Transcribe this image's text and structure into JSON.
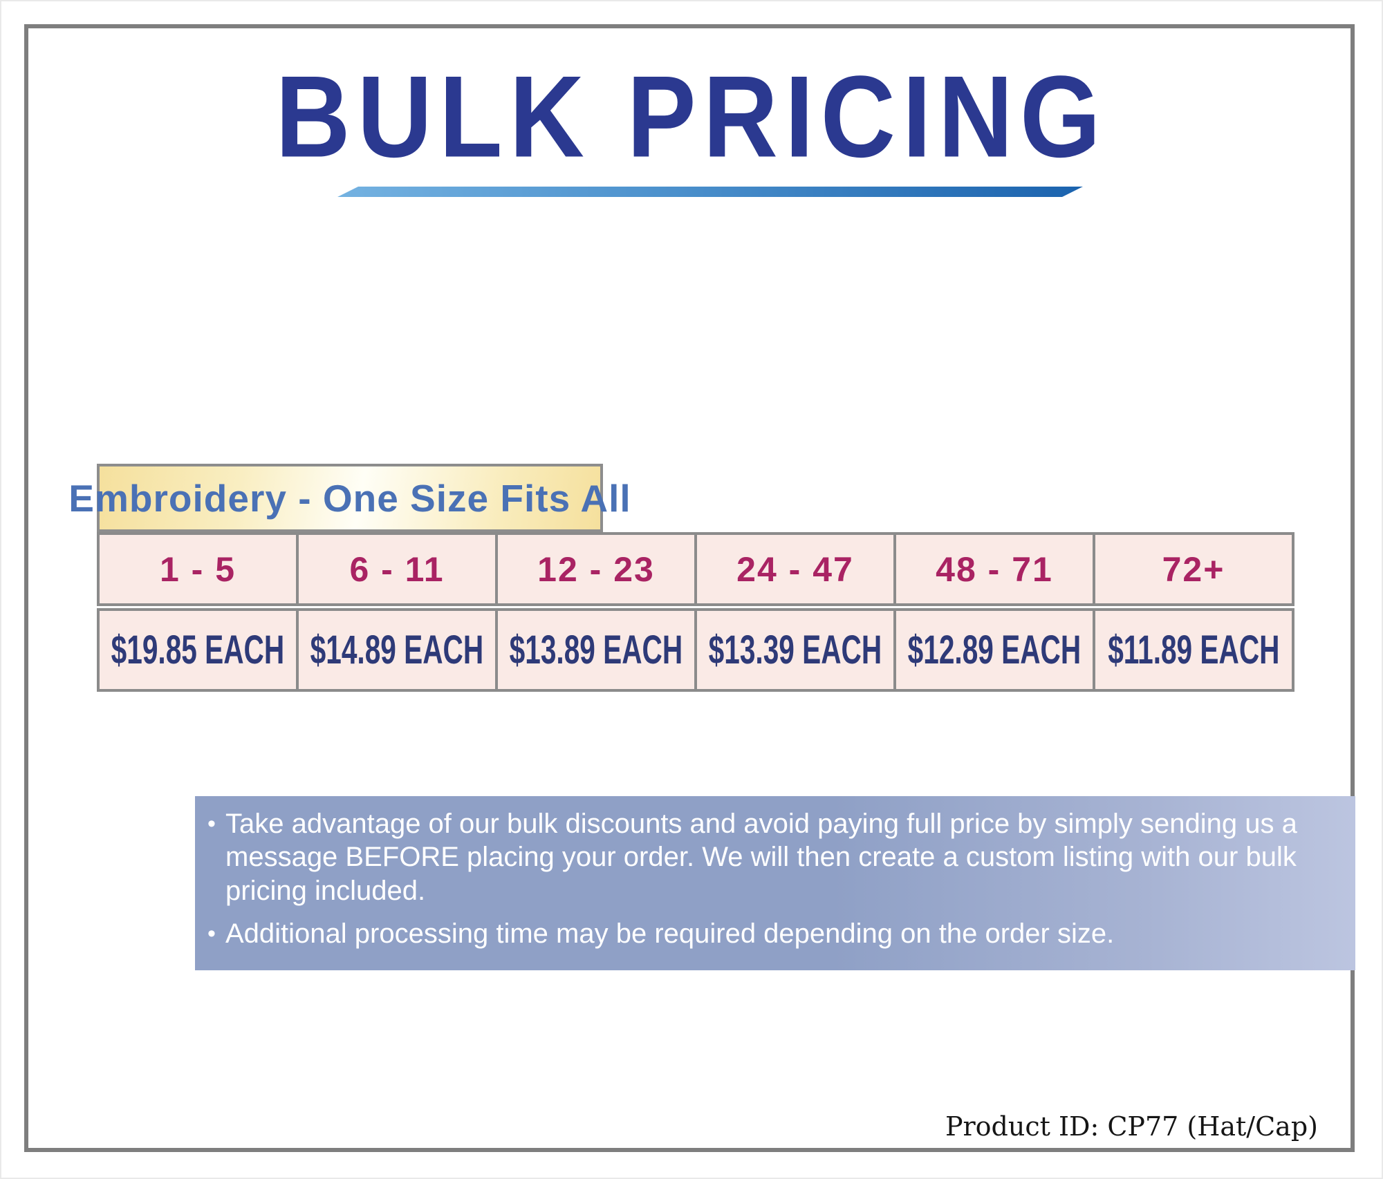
{
  "title": "BULK PRICING",
  "pricing_table": {
    "header": "Embroidery - One Size Fits All",
    "tiers": [
      {
        "qty": "1 - 5",
        "price": "$19.85 EACH"
      },
      {
        "qty": "6 - 11",
        "price": "$14.89 EACH"
      },
      {
        "qty": "12 - 23",
        "price": "$13.89 EACH"
      },
      {
        "qty": "24 - 47",
        "price": "$13.39 EACH"
      },
      {
        "qty": "48 - 71",
        "price": "$12.89 EACH"
      },
      {
        "qty": "72+",
        "price": "$11.89 EACH"
      }
    ]
  },
  "notes": {
    "bullet_char": "•",
    "bullet1": "Take advantage of our bulk discounts and avoid paying full price by simply sending us a message BEFORE placing your order. We will then create a custom listing with our bulk pricing included.",
    "bullet2": "Additional processing time may be required depending on the order size."
  },
  "footer": {
    "product_id": "Product ID: CP77 (Hat/Cap)"
  },
  "colors": {
    "title_navy": "#2b3990",
    "underline_gradient_start": "#74b2e1",
    "underline_gradient_end": "#1b63ae",
    "header_yellow": "#f5e09d",
    "header_text_blue": "#4a71b5",
    "cell_pink": "#faeae6",
    "qty_magenta": "#a92363",
    "price_navy": "#2e3a78",
    "notes_blue": "#8fa0c6",
    "frame_gray": "#7e7e7e"
  }
}
